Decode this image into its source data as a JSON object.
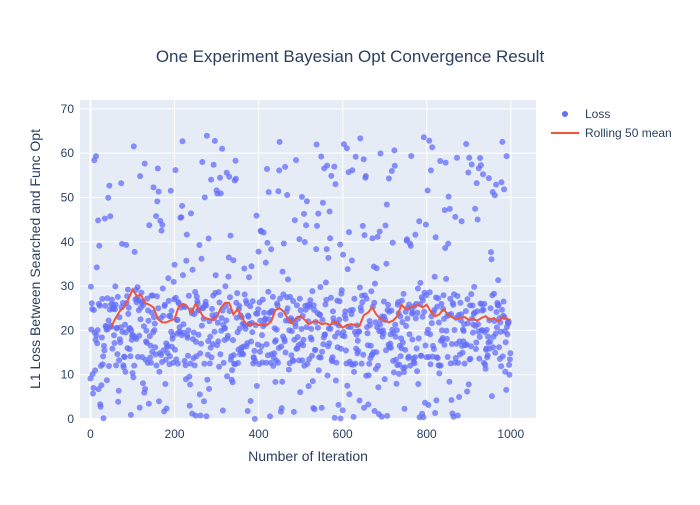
{
  "chart_data": {
    "type": "scatter",
    "title": "One Experiment Bayesian Opt Convergence Result",
    "xlabel": "Number of Iteration",
    "ylabel": "L1 Loss Between Searched and Func Opt",
    "xlim": [
      -25,
      1060
    ],
    "ylim": [
      0,
      72
    ],
    "xticks": [
      0,
      200,
      400,
      600,
      800,
      1000
    ],
    "yticks": [
      0,
      10,
      20,
      30,
      40,
      50,
      60,
      70
    ],
    "grid": true,
    "legend_position": "top-right",
    "series": [
      {
        "name": "Loss",
        "kind": "markers",
        "color": "#636efa",
        "n_points": 1000,
        "x_range": [
          0,
          999
        ],
        "y_range": [
          0,
          68
        ]
      },
      {
        "name": "Rolling 50 mean",
        "kind": "line",
        "color": "#ef553b",
        "x": [
          49,
          60,
          70,
          80,
          90,
          100,
          110,
          120,
          130,
          140,
          150,
          160,
          170,
          180,
          190,
          200,
          210,
          220,
          230,
          240,
          250,
          260,
          270,
          280,
          290,
          300,
          310,
          320,
          330,
          340,
          350,
          360,
          370,
          380,
          390,
          400,
          410,
          420,
          430,
          440,
          450,
          460,
          470,
          480,
          490,
          500,
          510,
          520,
          530,
          540,
          550,
          560,
          570,
          580,
          590,
          600,
          610,
          620,
          630,
          640,
          650,
          660,
          670,
          680,
          690,
          700,
          710,
          720,
          730,
          740,
          750,
          760,
          770,
          780,
          790,
          800,
          810,
          820,
          830,
          840,
          850,
          860,
          870,
          880,
          890,
          900,
          910,
          920,
          930,
          940,
          950,
          960,
          970,
          980,
          990,
          999
        ],
        "y": [
          20.8,
          22.8,
          24.4,
          25.2,
          27.0,
          29.2,
          27.8,
          28.0,
          26.2,
          25.8,
          25.2,
          22.6,
          21.8,
          21.8,
          22.2,
          22.6,
          25.4,
          26.0,
          25.4,
          24.0,
          26.0,
          24.4,
          22.8,
          22.6,
          22.4,
          23.0,
          25.0,
          26.2,
          26.2,
          23.6,
          24.8,
          23.0,
          21.4,
          21.4,
          21.6,
          21.2,
          21.4,
          21.2,
          22.0,
          24.6,
          25.0,
          24.2,
          22.6,
          21.6,
          22.8,
          23.2,
          22.4,
          21.4,
          22.0,
          22.0,
          21.4,
          21.6,
          21.2,
          22.0,
          21.4,
          20.6,
          21.2,
          21.4,
          21.2,
          21.0,
          23.4,
          24.0,
          25.2,
          23.6,
          22.6,
          22.2,
          21.8,
          22.2,
          23.2,
          25.8,
          24.8,
          25.2,
          25.4,
          25.8,
          25.2,
          25.8,
          24.2,
          23.2,
          23.6,
          24.8,
          23.6,
          23.0,
          22.6,
          22.8,
          23.0,
          22.4,
          22.6,
          22.2,
          22.8,
          23.2,
          22.4,
          22.8,
          22.0,
          23.0,
          22.6,
          22.4
        ]
      }
    ]
  }
}
